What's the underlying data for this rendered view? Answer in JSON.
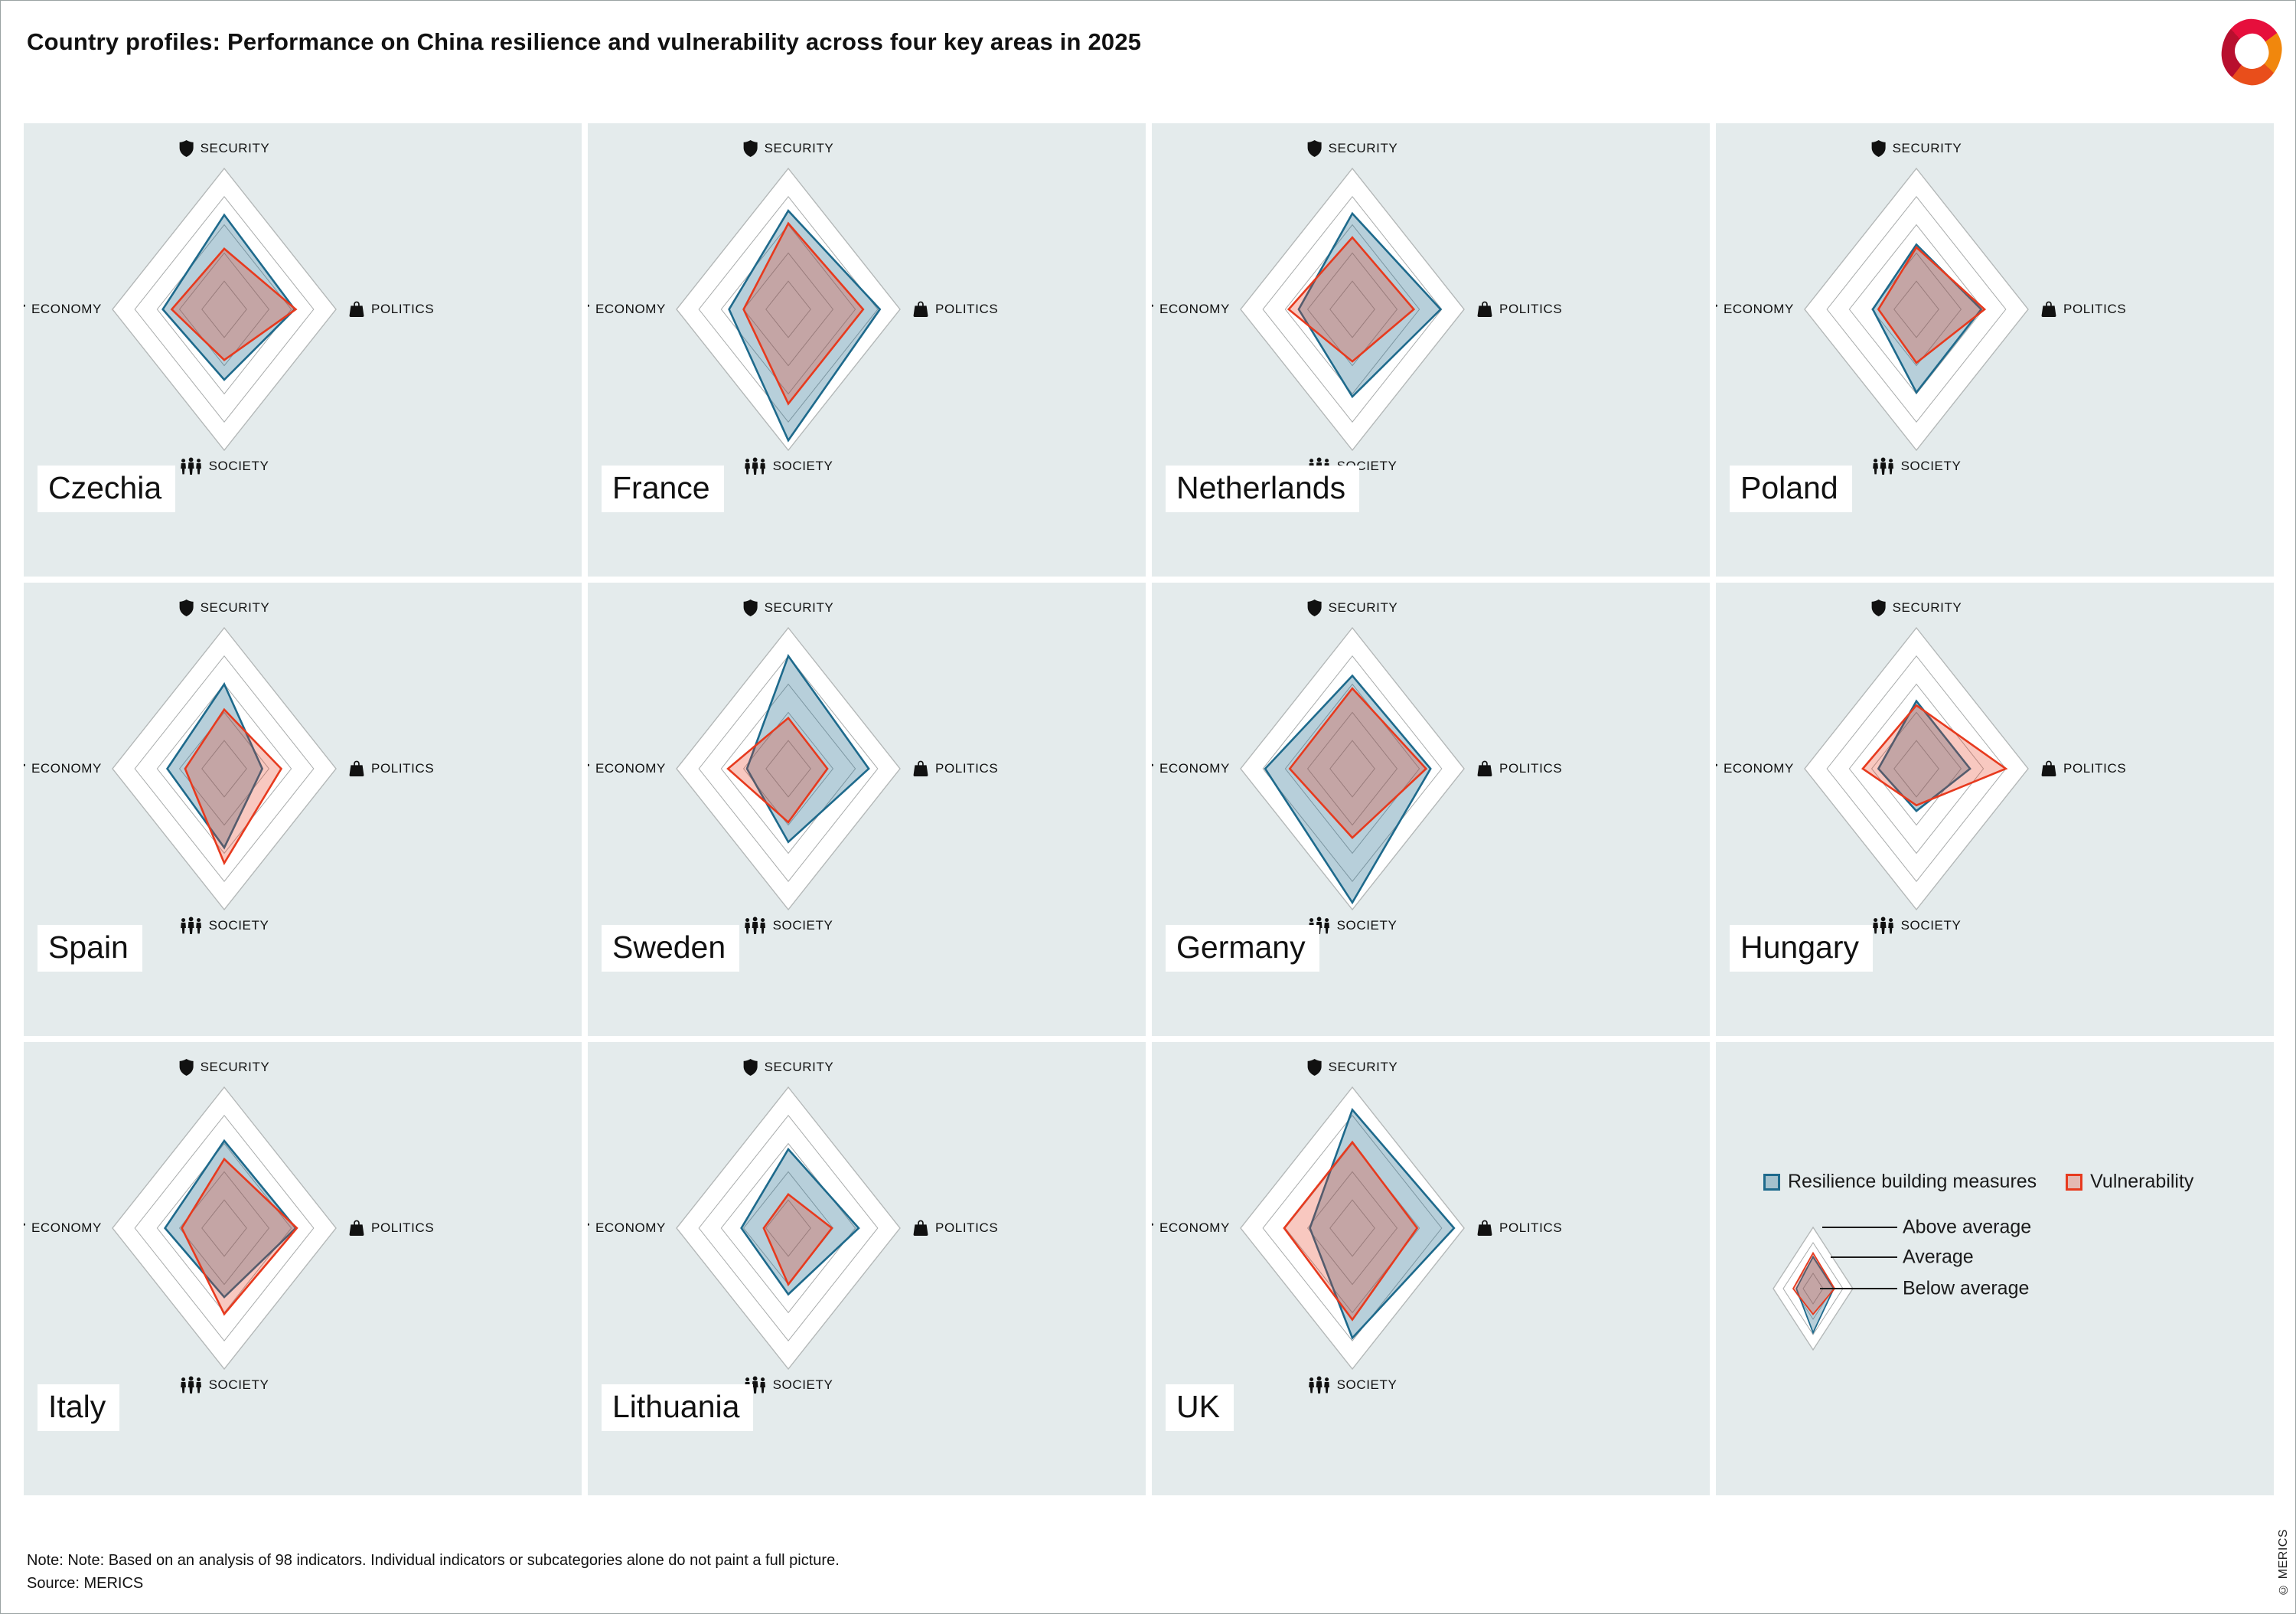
{
  "header": {
    "title": "Country profiles: Performance on China resilience and vulnerability across four key areas in 2025"
  },
  "axes": [
    {
      "key": "security",
      "label": "SECURITY",
      "icon": "shield-icon"
    },
    {
      "key": "politics",
      "label": "POLITICS",
      "icon": "handbag-icon"
    },
    {
      "key": "society",
      "label": "SOCIETY",
      "icon": "people-icon"
    },
    {
      "key": "economy",
      "label": "ECONOMY",
      "icon": "coins-hand-icon"
    }
  ],
  "legend": {
    "series": [
      {
        "name": "Resilience building measures",
        "stroke": "#1e6a8c",
        "fill": "rgba(30,106,140,0.32)"
      },
      {
        "name": "Vulnerability",
        "stroke": "#e73a1e",
        "fill": "rgba(231,58,30,0.28)"
      }
    ],
    "rings": [
      {
        "label": "Above average"
      },
      {
        "label": "Average"
      },
      {
        "label": "Below average"
      }
    ],
    "sample": {
      "resilience": {
        "security": 0.52,
        "politics": 0.52,
        "society": 0.72,
        "economy": 0.42
      },
      "vulnerability": {
        "security": 0.58,
        "politics": 0.54,
        "society": 0.42,
        "economy": 0.5
      }
    }
  },
  "chart_data": {
    "type": "radar",
    "axes": [
      "SECURITY",
      "POLITICS",
      "SOCIETY",
      "ECONOMY"
    ],
    "scale": {
      "min": 0,
      "max": 1,
      "gridline_rings": [
        0.2,
        0.4,
        0.6,
        0.8,
        1.0
      ],
      "ring_labels_outer_to_inner": [
        "Above average",
        "Average",
        "Below average"
      ]
    },
    "series_names": [
      "Resilience building measures",
      "Vulnerability"
    ],
    "countries": [
      {
        "name": "Czechia",
        "resilience": {
          "security": 0.67,
          "politics": 0.63,
          "society": 0.5,
          "economy": 0.55
        },
        "vulnerability": {
          "security": 0.43,
          "politics": 0.64,
          "society": 0.36,
          "economy": 0.47
        }
      },
      {
        "name": "France",
        "resilience": {
          "security": 0.7,
          "politics": 0.82,
          "society": 0.93,
          "economy": 0.53
        },
        "vulnerability": {
          "security": 0.61,
          "politics": 0.67,
          "society": 0.67,
          "economy": 0.4
        }
      },
      {
        "name": "Netherlands",
        "resilience": {
          "security": 0.68,
          "politics": 0.79,
          "society": 0.62,
          "economy": 0.48
        },
        "vulnerability": {
          "security": 0.51,
          "politics": 0.55,
          "society": 0.37,
          "economy": 0.57
        }
      },
      {
        "name": "Poland",
        "resilience": {
          "security": 0.46,
          "politics": 0.58,
          "society": 0.59,
          "economy": 0.39
        },
        "vulnerability": {
          "security": 0.44,
          "politics": 0.61,
          "society": 0.38,
          "economy": 0.34
        }
      },
      {
        "name": "Spain",
        "resilience": {
          "security": 0.6,
          "politics": 0.34,
          "society": 0.56,
          "economy": 0.51
        },
        "vulnerability": {
          "security": 0.42,
          "politics": 0.51,
          "society": 0.67,
          "economy": 0.35
        }
      },
      {
        "name": "Sweden",
        "resilience": {
          "security": 0.8,
          "politics": 0.72,
          "society": 0.52,
          "economy": 0.37
        },
        "vulnerability": {
          "security": 0.36,
          "politics": 0.35,
          "society": 0.38,
          "economy": 0.54
        }
      },
      {
        "name": "Germany",
        "resilience": {
          "security": 0.66,
          "politics": 0.7,
          "society": 0.95,
          "economy": 0.78
        },
        "vulnerability": {
          "security": 0.57,
          "politics": 0.66,
          "society": 0.49,
          "economy": 0.56
        }
      },
      {
        "name": "Hungary",
        "resilience": {
          "security": 0.48,
          "politics": 0.48,
          "society": 0.3,
          "economy": 0.34
        },
        "vulnerability": {
          "security": 0.45,
          "politics": 0.8,
          "society": 0.26,
          "economy": 0.48
        }
      },
      {
        "name": "Italy",
        "resilience": {
          "security": 0.62,
          "politics": 0.64,
          "society": 0.49,
          "economy": 0.53
        },
        "vulnerability": {
          "security": 0.49,
          "politics": 0.65,
          "society": 0.61,
          "economy": 0.38
        }
      },
      {
        "name": "Lithuania",
        "resilience": {
          "security": 0.56,
          "politics": 0.63,
          "society": 0.47,
          "economy": 0.42
        },
        "vulnerability": {
          "security": 0.24,
          "politics": 0.39,
          "society": 0.4,
          "economy": 0.22
        }
      },
      {
        "name": "UK",
        "resilience": {
          "security": 0.84,
          "politics": 0.91,
          "society": 0.78,
          "economy": 0.38
        },
        "vulnerability": {
          "security": 0.61,
          "politics": 0.58,
          "society": 0.65,
          "economy": 0.61
        }
      }
    ]
  },
  "note": {
    "line1": "Note: Note: Based on an analysis of 98 indicators. Individual indicators or subcategories alone do not paint a full picture.",
    "line2": "Source: MERICS"
  },
  "copyright": "© MERICS",
  "colors": {
    "cell_background": "#e4ebec",
    "outer_ring_fill": "#ffffff",
    "ring_stroke": "#aeb2b2",
    "resilience_stroke": "#1e6a8c",
    "vulnerability_stroke": "#e73a1e"
  }
}
